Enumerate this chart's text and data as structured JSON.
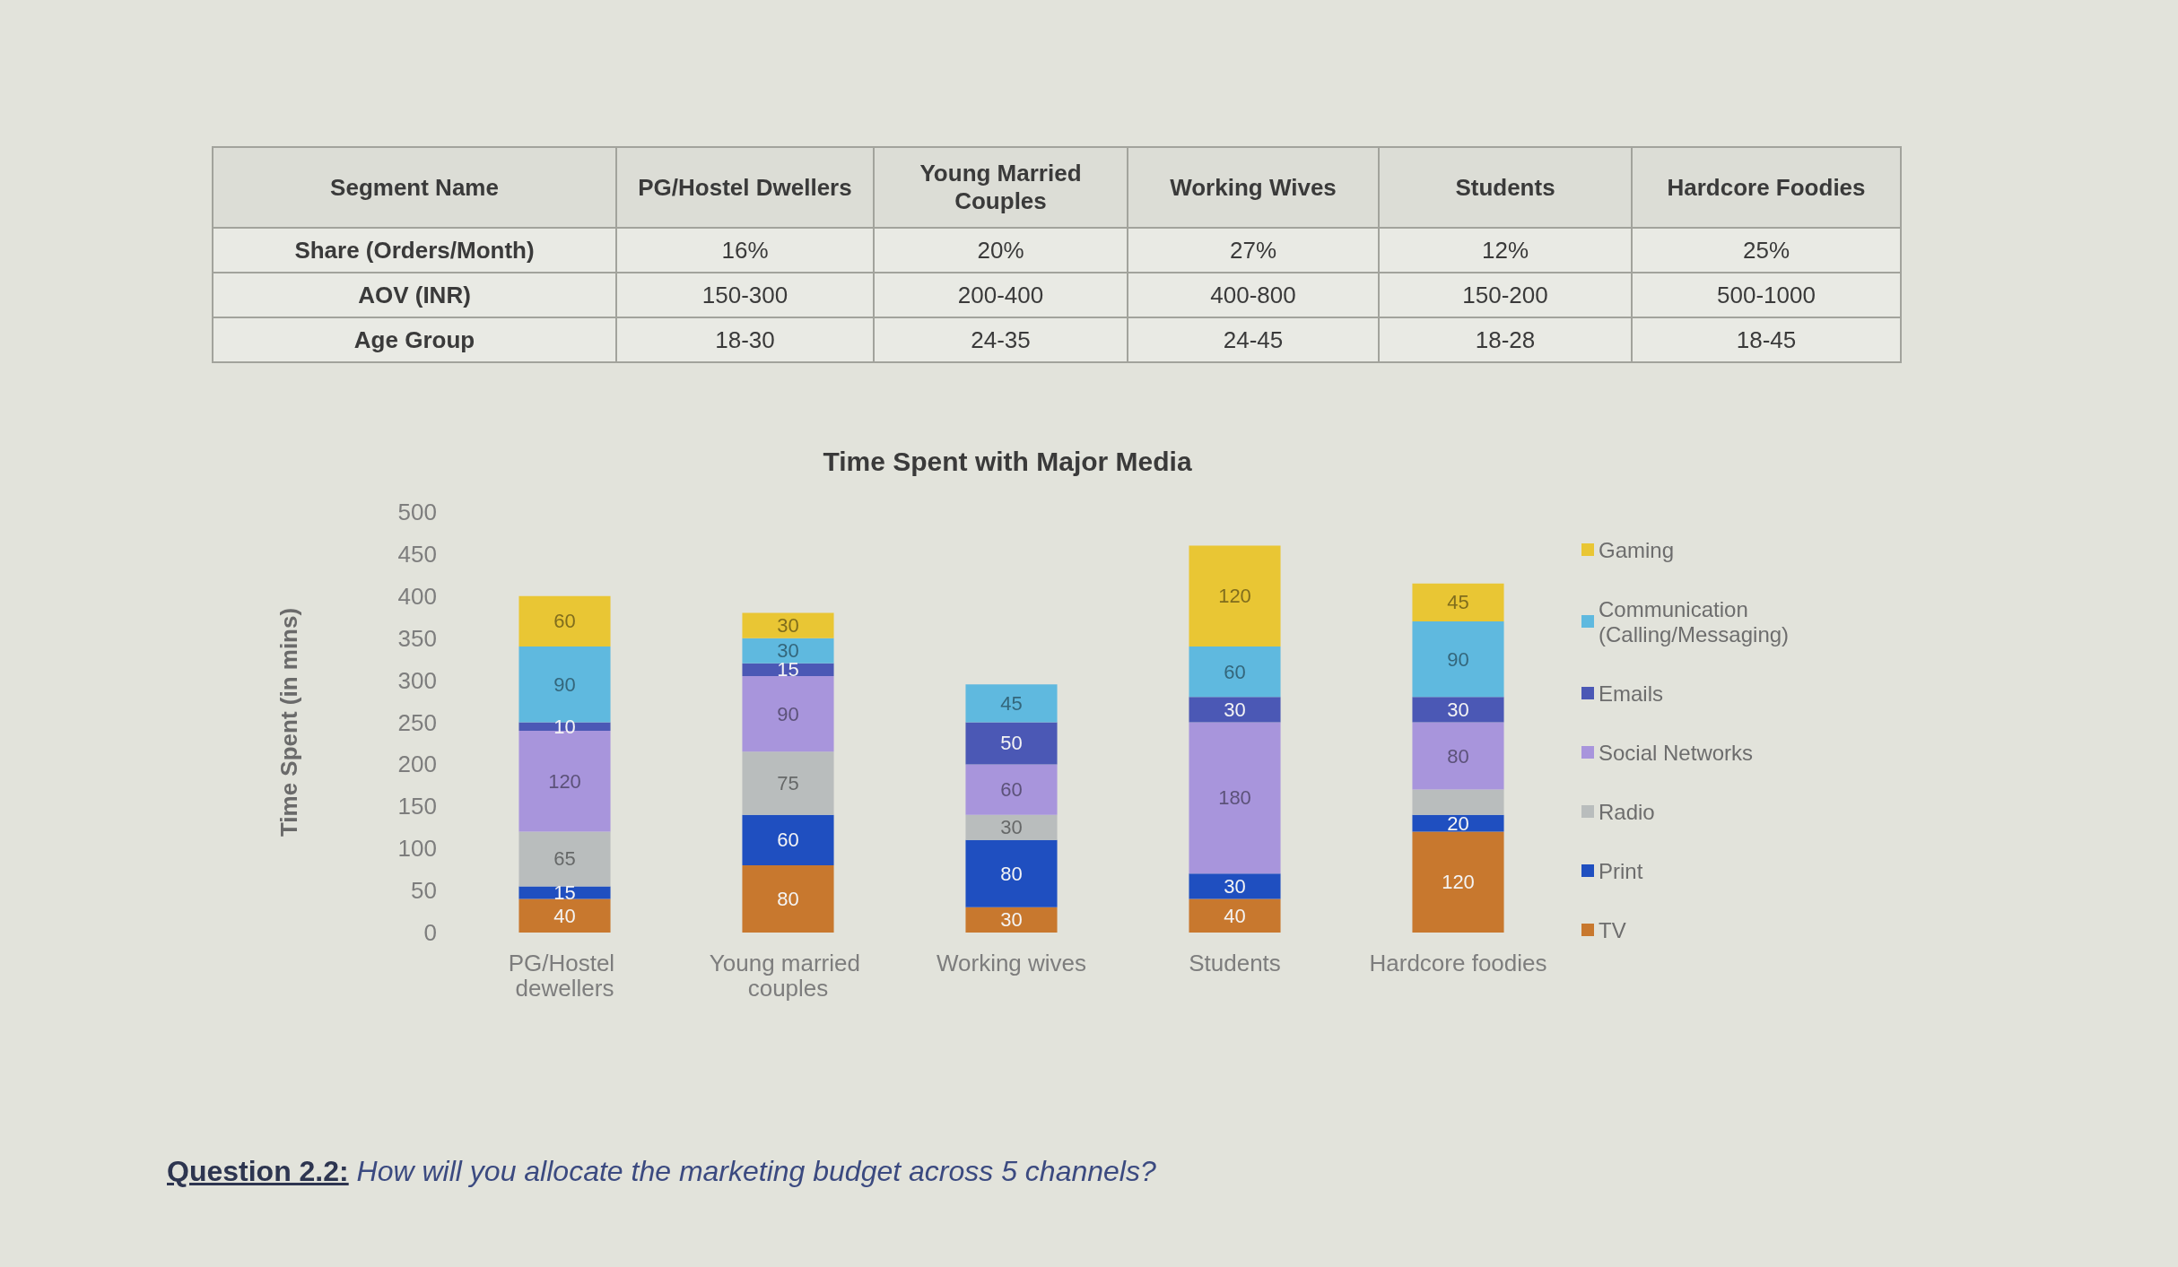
{
  "chart_data": [
    {
      "type": "other",
      "xlabel": "Segment Name",
      "categories": [
        "PG/Hostel Dwellers",
        "Young Married Couples",
        "Working Wives",
        "Students",
        "Hardcore Foodies"
      ],
      "y_categories": [
        "Share (Orders/Month)",
        "AOV (INR)",
        "Age Group"
      ],
      "cell_labels": [
        [
          "16%",
          "20%",
          "27%",
          "12%",
          "25%"
        ],
        [
          "150-300",
          "200-400",
          "400-800",
          "150-200",
          "500-1000"
        ],
        [
          "18-30",
          "24-35",
          "24-45",
          "18-28",
          "18-45"
        ]
      ]
    },
    {
      "type": "bar",
      "title": "Time Spent with Major Media",
      "ylabel": "Time Spent (in mins)",
      "categories": [
        "PG/Hostel dewellers",
        "Young married couples",
        "Working wives",
        "Students",
        "Hardcore foodies"
      ],
      "stacked": true,
      "ylim": [
        0,
        500
      ],
      "yticks": [
        0,
        50,
        100,
        150,
        200,
        250,
        300,
        350,
        400,
        450,
        500
      ],
      "legend": "right",
      "data_labels": true,
      "series": [
        {
          "name": "TV",
          "color": "#c8782e",
          "values": [
            40,
            80,
            30,
            40,
            120
          ]
        },
        {
          "name": "Print",
          "color": "#1f4fc0",
          "values": [
            15,
            60,
            80,
            30,
            20
          ]
        },
        {
          "name": "Radio",
          "color": "#b9bdbd",
          "values": [
            65,
            75,
            30,
            null,
            30
          ],
          "value_labels": [
            "65",
            "75",
            "30",
            null,
            null
          ]
        },
        {
          "name": "Social Networks",
          "color": "#a895dc",
          "values": [
            120,
            90,
            60,
            180,
            80
          ]
        },
        {
          "name": "Emails",
          "color": "#4b58b5",
          "values": [
            10,
            15,
            50,
            30,
            30
          ]
        },
        {
          "name": "Communication (Calling/Messaging)",
          "color": "#5fb9df",
          "values": [
            90,
            30,
            45,
            60,
            90
          ]
        },
        {
          "name": "Gaming",
          "color": "#e9c634",
          "values": [
            60,
            30,
            null,
            120,
            45
          ]
        }
      ],
      "annotations": [
        "Question 2.2: How will you allocate the marketing budget across 5 channels?"
      ]
    }
  ]
}
